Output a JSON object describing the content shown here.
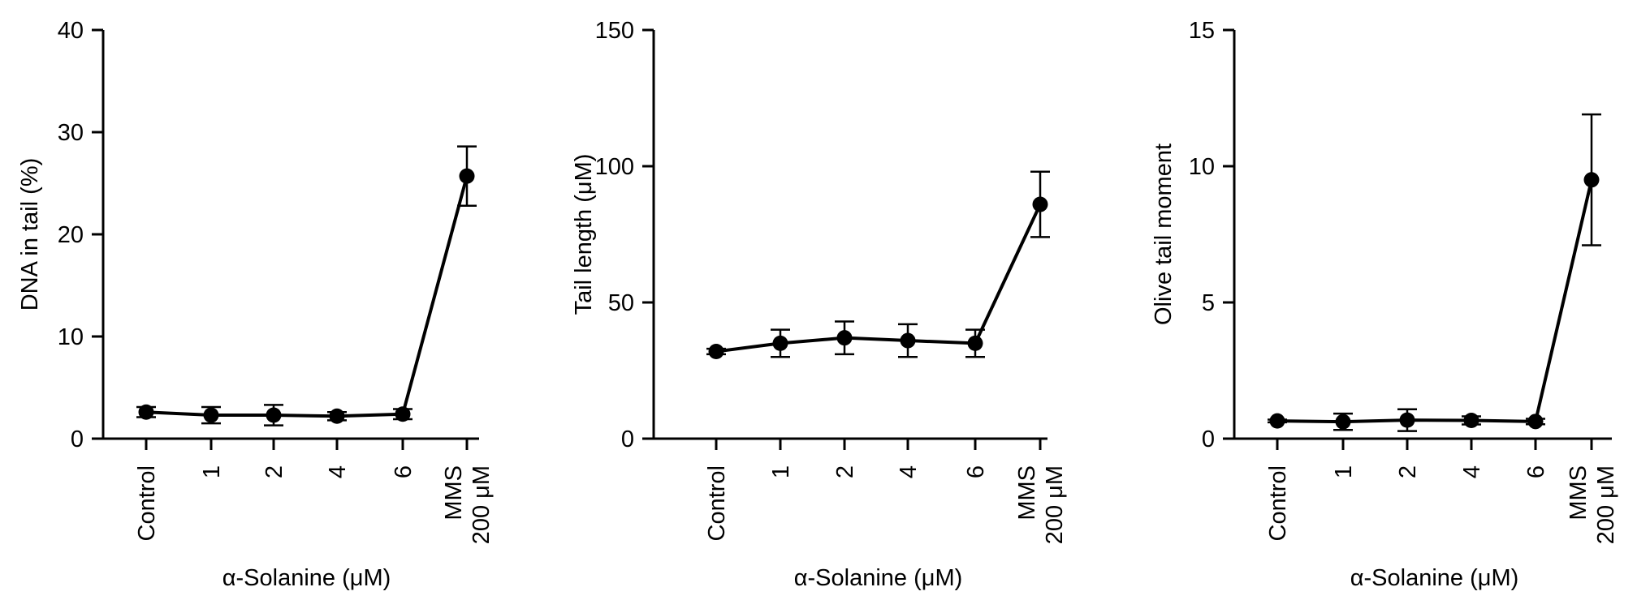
{
  "chart_data": [
    {
      "type": "line",
      "categories": [
        "Control",
        "1",
        "2",
        "4",
        "6",
        "MMS\n200 μM"
      ],
      "values": [
        2.6,
        2.3,
        2.3,
        2.2,
        2.4,
        25.7
      ],
      "errors": [
        0.5,
        0.8,
        1.0,
        0.4,
        0.5,
        2.9
      ],
      "ylabel": "DNA in tail (%)",
      "xlabel": "α-Solanine (μM)",
      "ylim": [
        0,
        40
      ],
      "yticks": [
        "0",
        "10",
        "20",
        "30",
        "40"
      ],
      "line_color": "#000000"
    },
    {
      "type": "line",
      "categories": [
        "Control",
        "1",
        "2",
        "4",
        "6",
        "MMS\n200 μM"
      ],
      "values": [
        32,
        35,
        37,
        36,
        35,
        86
      ],
      "errors": [
        1,
        5,
        6,
        6,
        5,
        12
      ],
      "ylabel": "Tail length (μM)",
      "xlabel": "α-Solanine (μM)",
      "ylim": [
        0,
        150
      ],
      "yticks": [
        "0",
        "50",
        "100",
        "150"
      ],
      "line_color": "#000000"
    },
    {
      "type": "line",
      "categories": [
        "Control",
        "1",
        "2",
        "4",
        "6",
        "MMS\n200 μM"
      ],
      "values": [
        0.65,
        0.62,
        0.68,
        0.67,
        0.63,
        9.5
      ],
      "errors": [
        0.05,
        0.3,
        0.4,
        0.15,
        0.1,
        2.4
      ],
      "ylabel": "Olive tail moment",
      "xlabel": "α-Solanine (μM)",
      "ylim": [
        0,
        15
      ],
      "yticks": [
        "0",
        "5",
        "10",
        "15"
      ],
      "line_color": "#000000"
    }
  ]
}
